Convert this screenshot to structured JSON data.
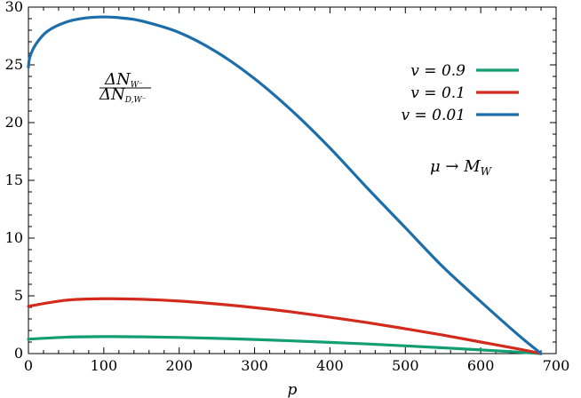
{
  "chart_data": {
    "type": "line",
    "xlabel": "p",
    "ylabel": "",
    "xlim": [
      0,
      700
    ],
    "ylim": [
      0,
      30
    ],
    "x_ticks": [
      0,
      100,
      200,
      300,
      400,
      500,
      600,
      700
    ],
    "y_ticks": [
      0,
      5,
      10,
      15,
      20,
      25,
      30
    ],
    "grid": false,
    "legend_position": "top-right",
    "annotations": {
      "ratio_numerator": "ΔN_{W⁻}",
      "ratio_denominator": "ΔN_{D,W⁻}",
      "limit_text": "μ → M_W"
    },
    "series": [
      {
        "name": "v = 0.9",
        "color": "#129e72",
        "x": [
          0,
          50,
          100,
          150,
          200,
          250,
          300,
          350,
          400,
          450,
          500,
          550,
          600,
          650,
          680
        ],
        "y": [
          1.25,
          1.42,
          1.47,
          1.45,
          1.4,
          1.32,
          1.22,
          1.1,
          0.97,
          0.83,
          0.67,
          0.5,
          0.32,
          0.13,
          0.0
        ]
      },
      {
        "name": "v = 0.1",
        "color": "#d22a1c",
        "x": [
          0,
          50,
          100,
          150,
          200,
          250,
          300,
          350,
          400,
          450,
          500,
          550,
          600,
          650,
          680
        ],
        "y": [
          4.1,
          4.62,
          4.75,
          4.7,
          4.55,
          4.3,
          3.98,
          3.6,
          3.15,
          2.68,
          2.15,
          1.6,
          1.0,
          0.4,
          0.0
        ]
      },
      {
        "name": "v = 0.01",
        "color": "#1c6eaa",
        "x": [
          0,
          2,
          10,
          25,
          50,
          75,
          100,
          125,
          150,
          200,
          250,
          300,
          350,
          400,
          450,
          500,
          550,
          600,
          650,
          680
        ],
        "y": [
          24.8,
          25.7,
          26.8,
          27.9,
          28.7,
          29.05,
          29.15,
          29.05,
          28.8,
          27.8,
          26.1,
          23.8,
          21.0,
          17.8,
          14.3,
          10.9,
          7.5,
          4.5,
          1.6,
          0.0
        ]
      }
    ]
  }
}
